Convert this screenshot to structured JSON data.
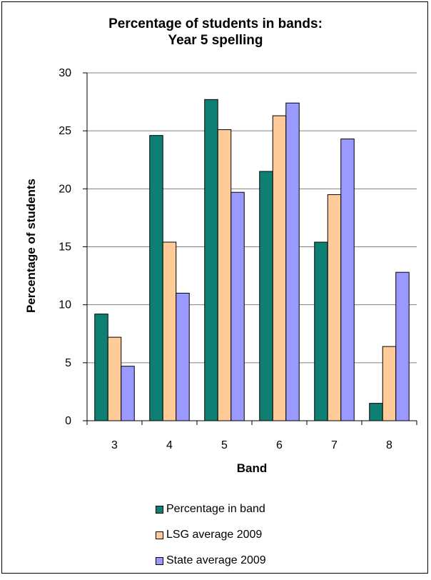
{
  "chart_data": {
    "type": "bar",
    "title": [
      "Percentage of students in bands:",
      "Year 5 spelling"
    ],
    "xlabel": "Band",
    "ylabel": "Percentage of students",
    "categories": [
      "3",
      "4",
      "5",
      "6",
      "7",
      "8"
    ],
    "ylim": [
      0,
      30
    ],
    "yticks": [
      "0",
      "5",
      "10",
      "15",
      "20",
      "25",
      "30"
    ],
    "grid": "horizontal",
    "legend_position": "bottom",
    "series": [
      {
        "name": "Percentage in band",
        "color": "#0f7f73",
        "values": [
          9.2,
          24.6,
          27.7,
          21.5,
          15.4,
          1.5
        ]
      },
      {
        "name": "LSG average 2009",
        "color": "#ffcc99",
        "values": [
          7.2,
          15.4,
          25.1,
          26.3,
          19.5,
          6.4
        ]
      },
      {
        "name": "State average 2009",
        "color": "#9999ff",
        "values": [
          4.7,
          11.0,
          19.7,
          27.4,
          24.3,
          12.8
        ]
      }
    ]
  }
}
